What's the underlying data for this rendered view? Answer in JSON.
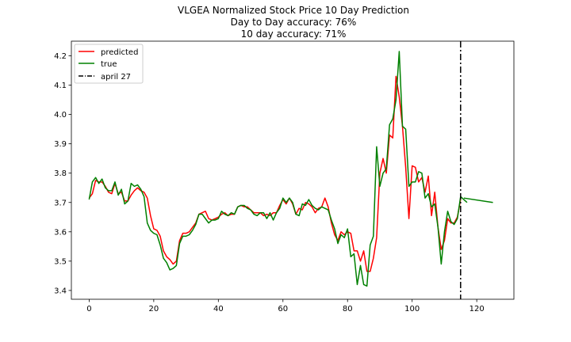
{
  "chart_data": {
    "type": "line",
    "title_lines": [
      "VLGEA Normalized Stock Price 10 Day Prediction",
      "Day to Day accuracy: 76%",
      "10 day accuracy: 71%"
    ],
    "xlim": [
      -5.5,
      131.5
    ],
    "ylim": [
      3.37,
      4.25
    ],
    "x_ticks": [
      0,
      20,
      40,
      60,
      80,
      100,
      120
    ],
    "y_ticks": [
      3.4,
      3.5,
      3.6,
      3.7,
      3.8,
      3.9,
      4.0,
      4.1,
      4.2
    ],
    "grid": false,
    "legend_position": "top-left",
    "series": [
      {
        "name": "predicted",
        "color": "#ff0000",
        "values": [
          3.715,
          3.73,
          3.775,
          3.77,
          3.77,
          3.755,
          3.735,
          3.73,
          3.765,
          3.73,
          3.735,
          3.705,
          3.705,
          3.725,
          3.74,
          3.75,
          3.74,
          3.735,
          3.715,
          3.655,
          3.61,
          3.605,
          3.585,
          3.535,
          3.515,
          3.505,
          3.49,
          3.5,
          3.57,
          3.595,
          3.595,
          3.6,
          3.615,
          3.63,
          3.66,
          3.665,
          3.67,
          3.645,
          3.64,
          3.645,
          3.65,
          3.66,
          3.665,
          3.655,
          3.66,
          3.66,
          3.685,
          3.69,
          3.685,
          3.685,
          3.675,
          3.665,
          3.665,
          3.665,
          3.655,
          3.66,
          3.655,
          3.665,
          3.665,
          3.69,
          3.71,
          3.695,
          3.715,
          3.695,
          3.66,
          3.68,
          3.675,
          3.7,
          3.695,
          3.685,
          3.665,
          3.68,
          3.685,
          3.715,
          3.685,
          3.63,
          3.59,
          3.57,
          3.6,
          3.59,
          3.6,
          3.595,
          3.535,
          3.535,
          3.5,
          3.535,
          3.465,
          3.465,
          3.51,
          3.58,
          3.8,
          3.85,
          3.8,
          3.93,
          3.92,
          4.13,
          4.06,
          3.96,
          3.82,
          3.645,
          3.825,
          3.82,
          3.77,
          3.785,
          3.735,
          3.79,
          3.655,
          3.735,
          3.615,
          3.54,
          3.57,
          3.645,
          3.63,
          3.63,
          3.65,
          3.71
        ],
        "x_start": 0
      },
      {
        "name": "true",
        "color": "#008000",
        "values": [
          3.71,
          3.77,
          3.785,
          3.765,
          3.78,
          3.75,
          3.74,
          3.74,
          3.77,
          3.725,
          3.745,
          3.695,
          3.705,
          3.765,
          3.755,
          3.76,
          3.745,
          3.72,
          3.63,
          3.605,
          3.595,
          3.59,
          3.555,
          3.51,
          3.495,
          3.47,
          3.475,
          3.485,
          3.56,
          3.585,
          3.585,
          3.59,
          3.605,
          3.625,
          3.66,
          3.66,
          3.645,
          3.63,
          3.64,
          3.64,
          3.645,
          3.67,
          3.66,
          3.655,
          3.665,
          3.66,
          3.685,
          3.69,
          3.69,
          3.68,
          3.675,
          3.66,
          3.655,
          3.665,
          3.665,
          3.645,
          3.665,
          3.64,
          3.665,
          3.68,
          3.715,
          3.7,
          3.715,
          3.7,
          3.66,
          3.655,
          3.695,
          3.69,
          3.71,
          3.69,
          3.68,
          3.675,
          3.685,
          3.68,
          3.675,
          3.64,
          3.61,
          3.56,
          3.59,
          3.58,
          3.61,
          3.515,
          3.525,
          3.42,
          3.485,
          3.42,
          3.415,
          3.555,
          3.585,
          3.89,
          3.755,
          3.8,
          3.815,
          3.965,
          3.985,
          4.05,
          4.215,
          3.96,
          3.95,
          3.755,
          3.77,
          3.77,
          3.805,
          3.8,
          3.715,
          3.73,
          3.685,
          3.695,
          3.615,
          3.49,
          3.6,
          3.67,
          3.635,
          3.625,
          3.645,
          3.72,
          3.71,
          3.7
        ],
        "x_start": 0,
        "tail": {
          "x": [
            116,
            125
          ],
          "y": [
            3.715,
            3.7
          ]
        }
      }
    ],
    "marker_line": {
      "name": "april 27",
      "x": 115,
      "color": "#000000",
      "style": "dashdot"
    }
  }
}
